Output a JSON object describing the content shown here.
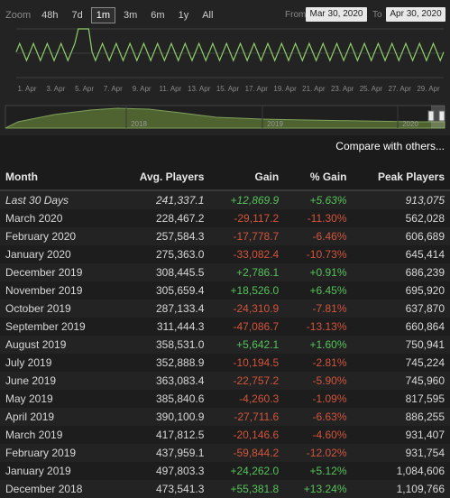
{
  "zoom": {
    "label": "Zoom",
    "options": [
      "48h",
      "7d",
      "1m",
      "3m",
      "6m",
      "1y",
      "All"
    ],
    "active": "1m"
  },
  "range": {
    "from_label": "From",
    "from_value": "Mar 30, 2020",
    "to_label": "To",
    "to_value": "Apr 30, 2020"
  },
  "chart": {
    "x_labels": [
      "1. Apr",
      "3. Apr",
      "5. Apr",
      "7. Apr",
      "9. Apr",
      "11. Apr",
      "13. Apr",
      "15. Apr",
      "17. Apr",
      "19. Apr",
      "21. Apr",
      "23. Apr",
      "25. Apr",
      "27. Apr",
      "29. Apr"
    ],
    "navigator_labels": [
      "2018",
      "2019",
      "2020"
    ],
    "line_color": "#8fcf6a",
    "grid_color": "#3c3c3c"
  },
  "chart_data": {
    "type": "line",
    "x": [
      "1. Apr",
      "3. Apr",
      "5. Apr",
      "7. Apr",
      "9. Apr",
      "11. Apr",
      "13. Apr",
      "15. Apr",
      "17. Apr",
      "19. Apr",
      "21. Apr",
      "23. Apr",
      "25. Apr",
      "27. Apr",
      "29. Apr"
    ],
    "series": [
      {
        "values": [
          0.55,
          0.6,
          0.9,
          0.55,
          0.55,
          0.55,
          0.55,
          0.5,
          0.55,
          0.55,
          0.55,
          0.55,
          0.55,
          0.55,
          0.55
        ]
      }
    ],
    "grid": true,
    "legend": "none"
  },
  "compare_link": "Compare with others...",
  "table": {
    "headers": [
      "Month",
      "Avg. Players",
      "Gain",
      "% Gain",
      "Peak Players"
    ],
    "rows": [
      {
        "month": "Last 30 Days",
        "avg": "241,337.1",
        "gain": "+12,869.9",
        "pct": "+5.63%",
        "peak": "913,075",
        "dir": "pos",
        "italic": true
      },
      {
        "month": "March 2020",
        "avg": "228,467.2",
        "gain": "-29,117.2",
        "pct": "-11.30%",
        "peak": "562,028",
        "dir": "neg"
      },
      {
        "month": "February 2020",
        "avg": "257,584.3",
        "gain": "-17,778.7",
        "pct": "-6.46%",
        "peak": "606,689",
        "dir": "neg"
      },
      {
        "month": "January 2020",
        "avg": "275,363.0",
        "gain": "-33,082.4",
        "pct": "-10.73%",
        "peak": "645,414",
        "dir": "neg"
      },
      {
        "month": "December 2019",
        "avg": "308,445.5",
        "gain": "+2,786.1",
        "pct": "+0.91%",
        "peak": "686,239",
        "dir": "pos"
      },
      {
        "month": "November 2019",
        "avg": "305,659.4",
        "gain": "+18,526.0",
        "pct": "+6.45%",
        "peak": "695,920",
        "dir": "pos"
      },
      {
        "month": "October 2019",
        "avg": "287,133.4",
        "gain": "-24,310.9",
        "pct": "-7.81%",
        "peak": "637,870",
        "dir": "neg"
      },
      {
        "month": "September 2019",
        "avg": "311,444.3",
        "gain": "-47,086.7",
        "pct": "-13.13%",
        "peak": "660,864",
        "dir": "neg"
      },
      {
        "month": "August 2019",
        "avg": "358,531.0",
        "gain": "+5,642.1",
        "pct": "+1.60%",
        "peak": "750,941",
        "dir": "pos"
      },
      {
        "month": "July 2019",
        "avg": "352,888.9",
        "gain": "-10,194.5",
        "pct": "-2.81%",
        "peak": "745,224",
        "dir": "neg"
      },
      {
        "month": "June 2019",
        "avg": "363,083.4",
        "gain": "-22,757.2",
        "pct": "-5.90%",
        "peak": "745,960",
        "dir": "neg"
      },
      {
        "month": "May 2019",
        "avg": "385,840.6",
        "gain": "-4,260.3",
        "pct": "-1.09%",
        "peak": "817,595",
        "dir": "neg"
      },
      {
        "month": "April 2019",
        "avg": "390,100.9",
        "gain": "-27,711.6",
        "pct": "-6.63%",
        "peak": "886,255",
        "dir": "neg"
      },
      {
        "month": "March 2019",
        "avg": "417,812.5",
        "gain": "-20,146.6",
        "pct": "-4.60%",
        "peak": "931,407",
        "dir": "neg"
      },
      {
        "month": "February 2019",
        "avg": "437,959.1",
        "gain": "-59,844.2",
        "pct": "-12.02%",
        "peak": "931,754",
        "dir": "neg"
      },
      {
        "month": "January 2019",
        "avg": "497,803.3",
        "gain": "+24,262.0",
        "pct": "+5.12%",
        "peak": "1,084,606",
        "dir": "pos"
      },
      {
        "month": "December 2018",
        "avg": "473,541.3",
        "gain": "+55,381.8",
        "pct": "+13.24%",
        "peak": "1,109,766",
        "dir": "pos"
      }
    ]
  }
}
